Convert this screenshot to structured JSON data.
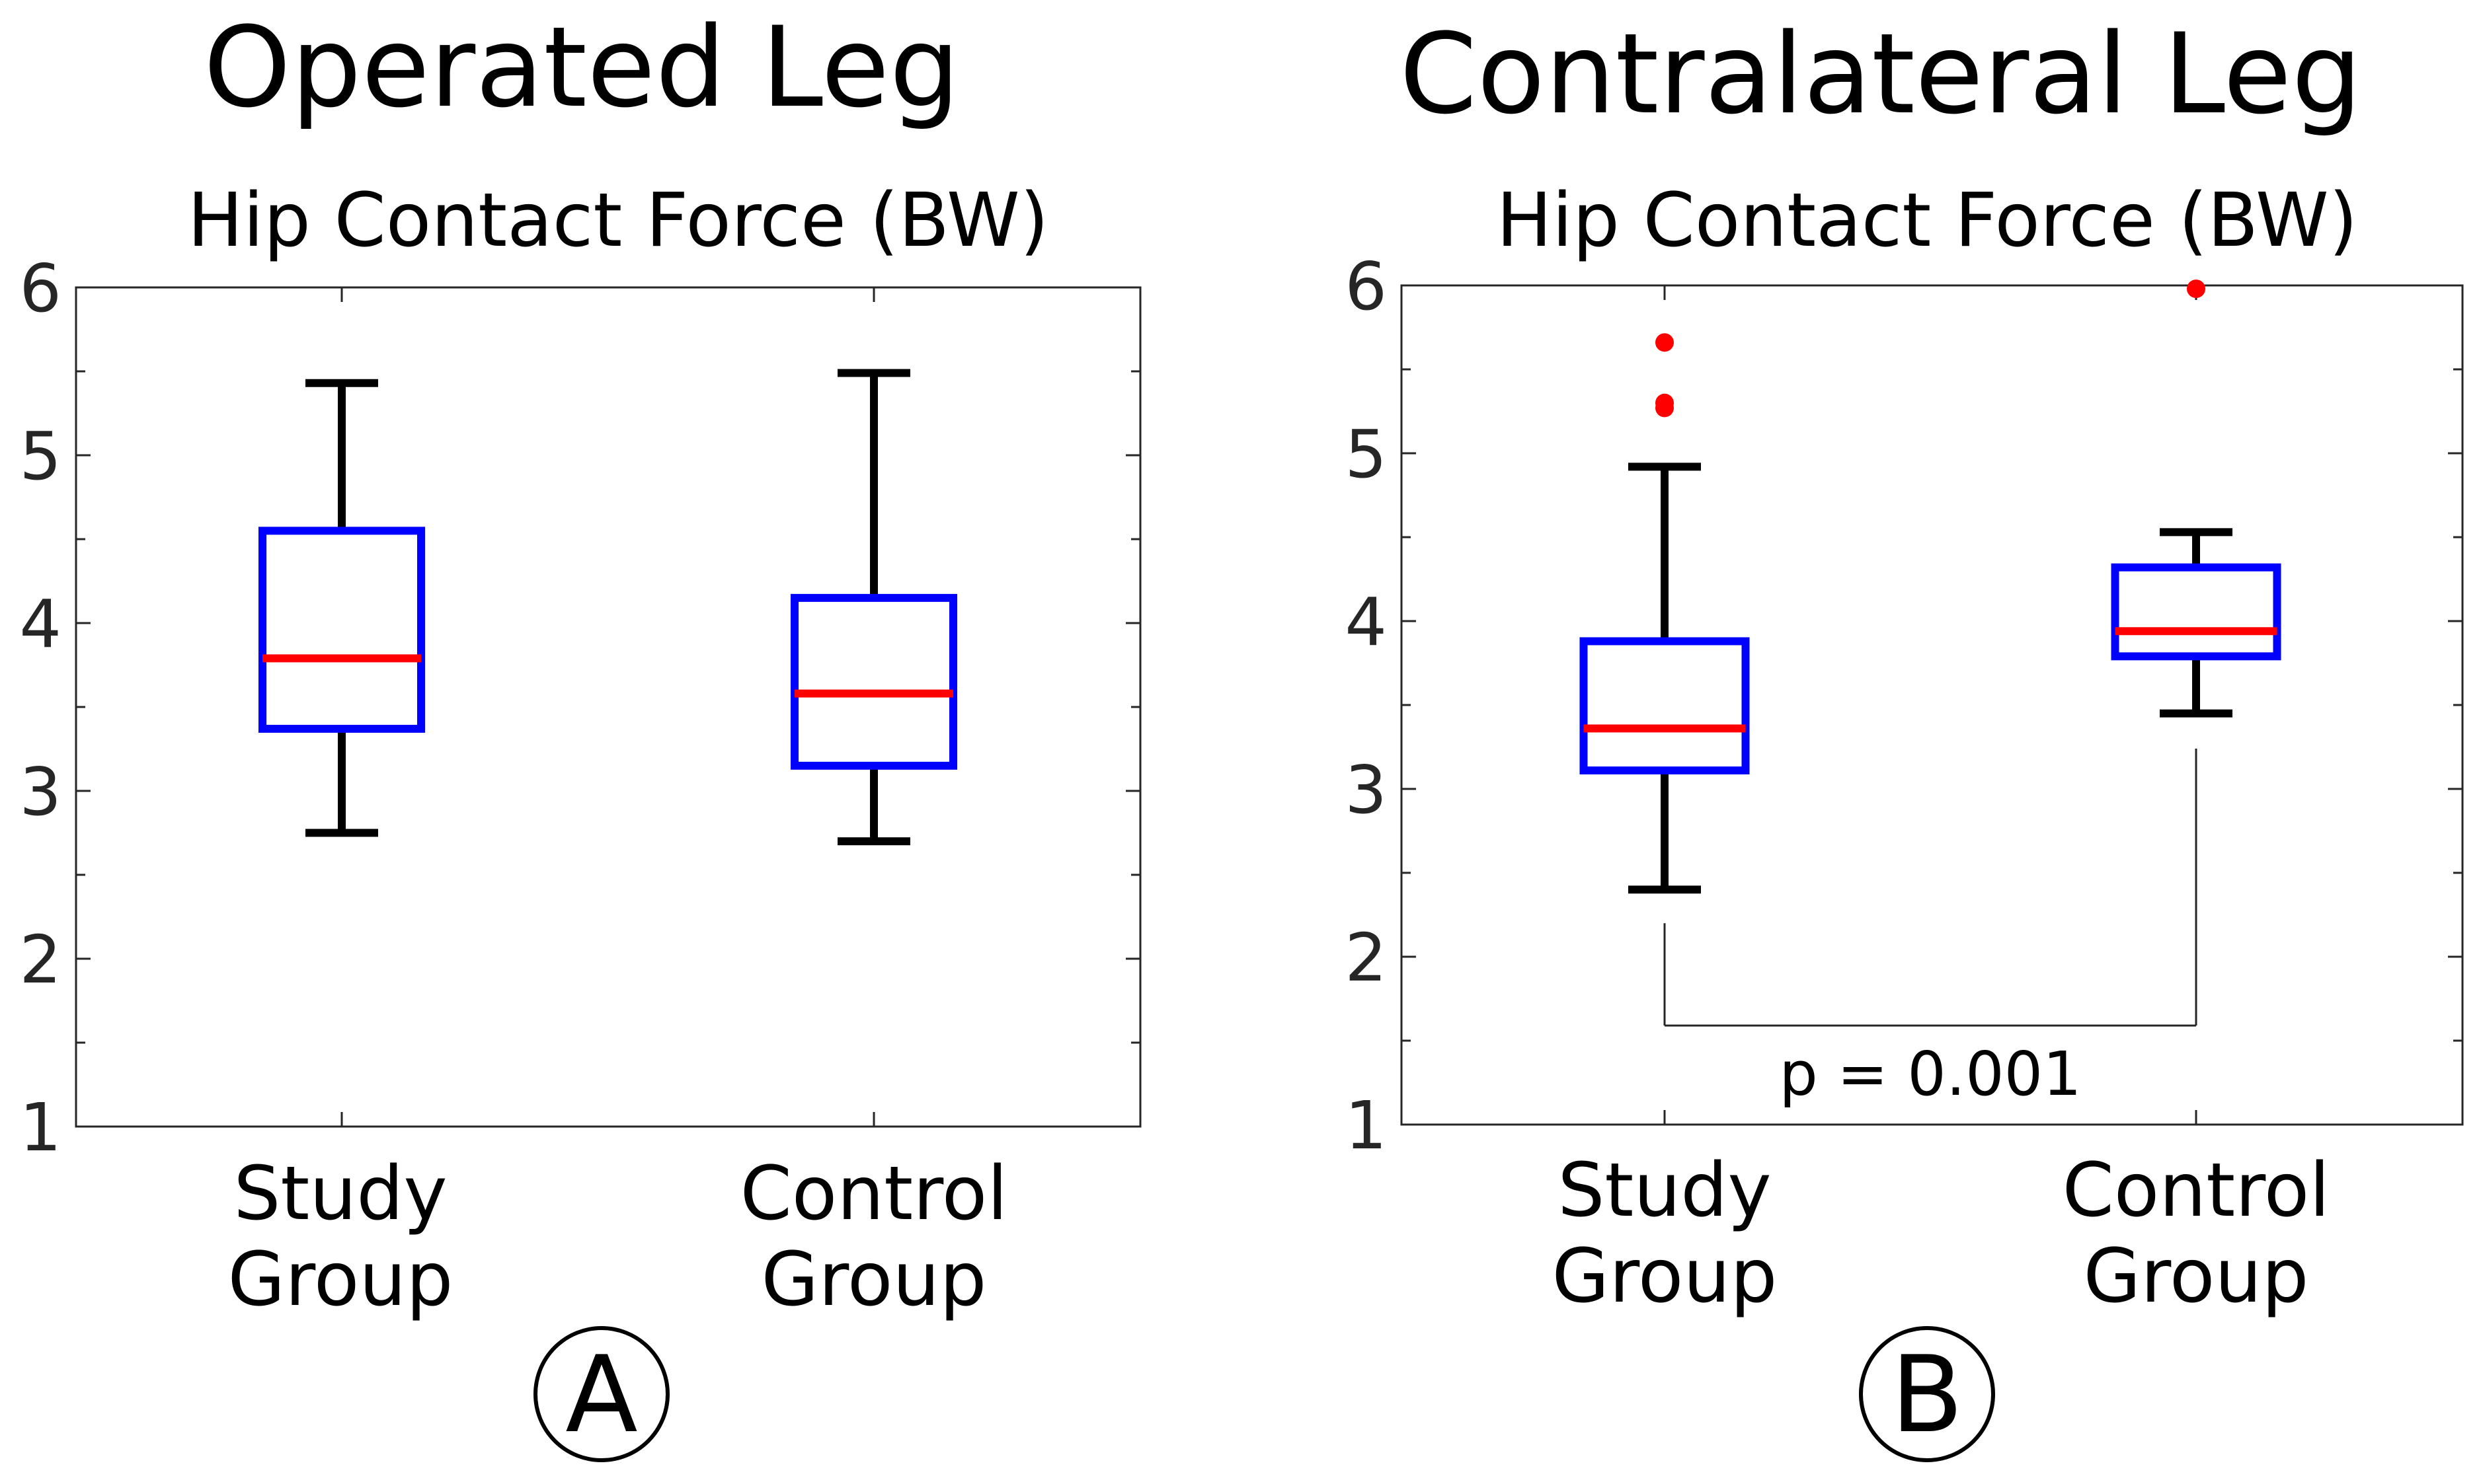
{
  "chart_data": [
    {
      "type": "boxplot",
      "panel_title": "Operated Leg",
      "title": "Hip Contact Force (BW)",
      "panel_letter": "A",
      "ylim": [
        1,
        6
      ],
      "yticks": [
        "1",
        "2",
        "3",
        "4",
        "5",
        "6"
      ],
      "categories": [
        {
          "line1": "Study",
          "line2": "Group"
        },
        {
          "line1": "Control",
          "line2": "Group"
        }
      ],
      "boxes": [
        {
          "whisker_low": 2.75,
          "q1": 3.37,
          "median": 3.79,
          "q3": 4.55,
          "whisker_high": 5.43,
          "outliers": []
        },
        {
          "whisker_low": 2.7,
          "q1": 3.15,
          "median": 3.58,
          "q3": 4.15,
          "whisker_high": 5.49,
          "outliers": []
        }
      ]
    },
    {
      "type": "boxplot",
      "panel_title": "Contralateral Leg",
      "title": "Hip Contact Force (BW)",
      "panel_letter": "B",
      "ylim": [
        1,
        6
      ],
      "yticks": [
        "1",
        "2",
        "3",
        "4",
        "5",
        "6"
      ],
      "categories": [
        {
          "line1": "Study",
          "line2": "Group"
        },
        {
          "line1": "Control",
          "line2": "Group"
        }
      ],
      "boxes": [
        {
          "whisker_low": 2.4,
          "q1": 3.11,
          "median": 3.36,
          "q3": 3.88,
          "whisker_high": 4.92,
          "outliers": [
            5.66,
            5.3,
            5.27
          ]
        },
        {
          "whisker_low": 3.45,
          "q1": 3.79,
          "median": 3.94,
          "q3": 4.32,
          "whisker_high": 4.53,
          "outliers": [
            5.98
          ]
        }
      ],
      "significance": {
        "label": "p = 0.001",
        "y": 1.59,
        "left_top": 2.2,
        "right_top": 3.24
      }
    }
  ],
  "colors": {
    "box": "#0000ff",
    "median": "#ff0000",
    "whisker": "#000000",
    "outlier": "#ff0000",
    "axis": "#262626"
  }
}
